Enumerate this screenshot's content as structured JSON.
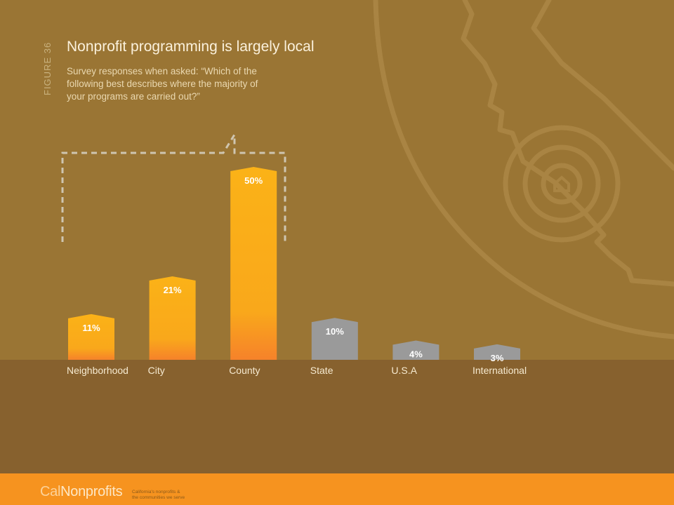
{
  "figure_label": "FIGURE 36",
  "footer": {
    "logo_cal": "Cal",
    "logo_nonprofits": "Nonprofits",
    "tagline_1": "California's nonprofits &",
    "tagline_2": "the communities we serve"
  },
  "colors": {
    "background": "#9a7534",
    "bottom_band": "#87612e",
    "footer": "#f6931f",
    "local_bar_top": "#fbb217",
    "local_bar_bottom": "#f6822a",
    "nonlocal_bar": "#9a9a9a",
    "bracket": "#cfc5b0"
  },
  "chart_data": {
    "type": "bar",
    "title": "Nonprofit programming is largely local",
    "subtitle": "Survey responses when asked: “Which of the following best describes where the majority of your programs are carried out?”",
    "categories": [
      "Neighborhood",
      "City",
      "County",
      "State",
      "U.S.A",
      "International"
    ],
    "values": [
      11,
      21,
      50,
      10,
      4,
      3
    ],
    "data_labels": [
      "11%",
      "21%",
      "50%",
      "10%",
      "4%",
      "3%"
    ],
    "unit": "%",
    "ylim": [
      0,
      50
    ],
    "grid": false,
    "legend": "none",
    "highlight": {
      "description": "bracket over local categories",
      "categories": [
        "Neighborhood",
        "City",
        "County"
      ]
    }
  }
}
